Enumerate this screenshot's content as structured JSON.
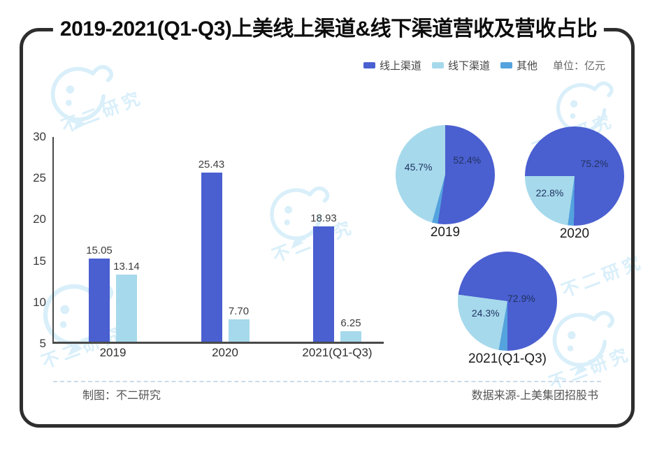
{
  "title": "2019-2021(Q1-Q3)上美线上渠道&线下渠道营收及营收占比",
  "legend": {
    "items": [
      {
        "label": "线上渠道",
        "color": "#4a5fd0"
      },
      {
        "label": "线下渠道",
        "color": "#a6d9ec"
      },
      {
        "label": "其他",
        "color": "#54a3de"
      }
    ],
    "unit_label": "单位：亿元"
  },
  "watermark": {
    "text": "不二研究"
  },
  "footer": {
    "left": "制图：不二研究",
    "right": "数据来源-上美集团招股书"
  },
  "chart_data": [
    {
      "type": "bar",
      "categories": [
        "2019",
        "2020",
        "2021(Q1-Q3)"
      ],
      "series": [
        {
          "name": "线上渠道",
          "values": [
            15.05,
            25.43,
            18.93
          ]
        },
        {
          "name": "线下渠道",
          "values": [
            13.14,
            7.7,
            6.25
          ]
        }
      ],
      "unit": "亿元",
      "ylim": [
        5,
        30
      ],
      "yticks": [
        30,
        25,
        20,
        15,
        10,
        5
      ],
      "grid": false,
      "value_labels": true,
      "legend_position": "top-right"
    },
    {
      "type": "pie",
      "pies": [
        {
          "label": "2019",
          "start_deg": 0,
          "slices": [
            {
              "name": "线上渠道",
              "pct": 52.4,
              "text": "52.4%",
              "label_pos": {
                "x": 72,
                "y": 35
              }
            },
            {
              "name": "其他",
              "pct": 1.9,
              "text": ""
            },
            {
              "name": "线下渠道",
              "pct": 45.7,
              "text": "45.7%",
              "label_pos": {
                "x": 23,
                "y": 42
              }
            }
          ]
        },
        {
          "label": "2020",
          "start_deg": 270,
          "slices": [
            {
              "name": "线上渠道",
              "pct": 75.2,
              "text": "75.2%",
              "label_pos": {
                "x": 70,
                "y": 37
              }
            },
            {
              "name": "其他",
              "pct": 2.0,
              "text": ""
            },
            {
              "name": "线下渠道",
              "pct": 22.8,
              "text": "22.8%",
              "label_pos": {
                "x": 25,
                "y": 67
              }
            }
          ]
        },
        {
          "label": "2021(Q1-Q3)",
          "start_deg": 277.6,
          "slices": [
            {
              "name": "线上渠道",
              "pct": 72.9,
              "text": "72.9%",
              "label_pos": {
                "x": 64,
                "y": 47
              }
            },
            {
              "name": "其他",
              "pct": 2.8,
              "text": ""
            },
            {
              "name": "线下渠道",
              "pct": 24.3,
              "text": "24.3%",
              "label_pos": {
                "x": 28,
                "y": 62
              }
            }
          ]
        }
      ]
    }
  ]
}
